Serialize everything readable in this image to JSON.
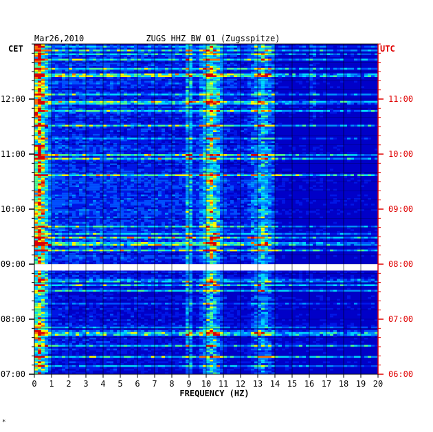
{
  "header": {
    "date": "Mar26,2010",
    "station": "ZUGS HHZ BW 01 (Zugsspitze)"
  },
  "footer": {
    "mark": "*"
  },
  "chart_data": {
    "type": "heatmap",
    "title": "ZUGS HHZ BW 01 (Zugsspitze)",
    "date": "Mar26,2010",
    "xlabel": "FREQUENCY (HZ)",
    "xlim": [
      0,
      20
    ],
    "x_ticks": [
      "0",
      "1",
      "2",
      "3",
      "4",
      "5",
      "6",
      "7",
      "8",
      "9",
      "10",
      "11",
      "12",
      "13",
      "14",
      "15",
      "16",
      "17",
      "18",
      "19",
      "20"
    ],
    "left_axis": {
      "label": "CET",
      "ticks": [
        "07:00",
        "08:00",
        "09:00",
        "10:00",
        "11:00",
        "12:00"
      ],
      "ylim": [
        "07:00",
        "13:00"
      ]
    },
    "right_axis": {
      "label": "UTC",
      "ticks": [
        "06:00",
        "07:00",
        "08:00",
        "09:00",
        "10:00",
        "11:00"
      ],
      "ylim": [
        "06:00",
        "12:00"
      ]
    },
    "data_gap": {
      "from_cet": "08:53",
      "to_cet": "09:00"
    },
    "colormap": [
      "#00008e",
      "#0000c8",
      "#0016e6",
      "#0050ff",
      "#0090ff",
      "#00d8ff",
      "#50ff90",
      "#ffff00",
      "#ff7000",
      "#e00000"
    ],
    "energy_bands_hz": [
      {
        "center": 0.3,
        "width": 0.6,
        "level": 0.55,
        "rows": "all"
      },
      {
        "center": 9.0,
        "width": 0.25,
        "level": 0.35,
        "rows": "all"
      },
      {
        "center": 10.3,
        "width": 0.7,
        "level": 0.45,
        "rows": "all"
      },
      {
        "center": 13.3,
        "width": 0.8,
        "level": 0.3,
        "rows": "all"
      },
      {
        "center": 16.2,
        "width": 0.2,
        "level": 0.2,
        "rows": "upper"
      }
    ],
    "grid": true
  }
}
